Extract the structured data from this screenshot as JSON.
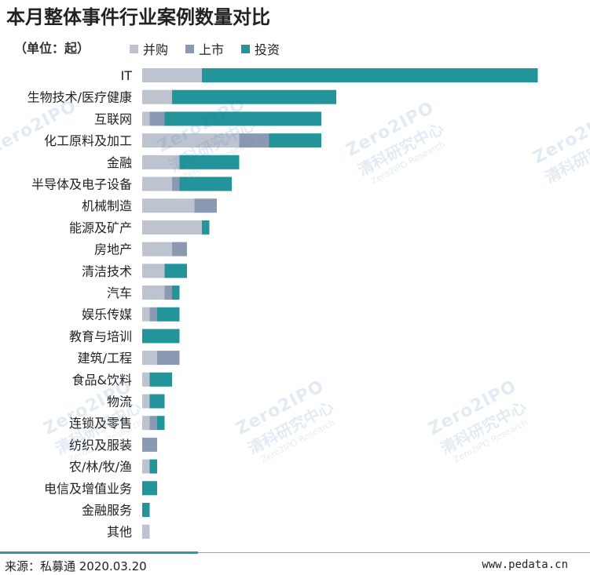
{
  "header": {
    "title": "本月整体事件行业案例数量对比",
    "unit": "（单位：起）"
  },
  "legend": [
    {
      "label": "并购",
      "color": "#bdc4cf"
    },
    {
      "label": "上市",
      "color": "#8a9ab2"
    },
    {
      "label": "投资",
      "color": "#23949a"
    }
  ],
  "footer": {
    "source": "来源：私募通 2020.03.20",
    "site": "www.pedata.cn"
  },
  "watermark": {
    "logo": "Zero2IPO",
    "cn": "清科研究中心",
    "en": "Zero2IPO Research"
  },
  "chart_data": {
    "type": "bar",
    "orientation": "horizontal",
    "stacked": true,
    "title": "本月整体事件行业案例数量对比",
    "categories": [
      "IT",
      "生物技术/医疗健康",
      "互联网",
      "化工原料及加工",
      "金融",
      "半导体及电子设备",
      "机械制造",
      "能源及矿产",
      "房地产",
      "清洁技术",
      "汽车",
      "娱乐传媒",
      "教育与培训",
      "建筑/工程",
      "食品&饮料",
      "物流",
      "连锁及零售",
      "纺织及服装",
      "农/林/牧/渔",
      "电信及增值业务",
      "金融服务",
      "其他"
    ],
    "series": [
      {
        "name": "并购",
        "color": "#bdc4cf",
        "values": [
          8,
          4,
          1,
          13,
          5,
          4,
          7,
          8,
          4,
          3,
          3,
          1,
          0,
          2,
          1,
          1,
          1,
          0,
          1,
          0,
          0,
          1
        ]
      },
      {
        "name": "上市",
        "color": "#8a9ab2",
        "values": [
          0,
          0,
          2,
          4,
          0,
          1,
          3,
          0,
          2,
          0,
          1,
          1,
          0,
          3,
          0,
          0,
          1,
          2,
          0,
          0,
          0,
          0
        ]
      },
      {
        "name": "投资",
        "color": "#23949a",
        "values": [
          45,
          22,
          21,
          7,
          8,
          7,
          0,
          1,
          0,
          3,
          1,
          3,
          5,
          0,
          3,
          2,
          1,
          0,
          1,
          2,
          1,
          0
        ]
      }
    ],
    "legend_position": "top-left",
    "grid": false,
    "axis_labels_visible": false
  }
}
